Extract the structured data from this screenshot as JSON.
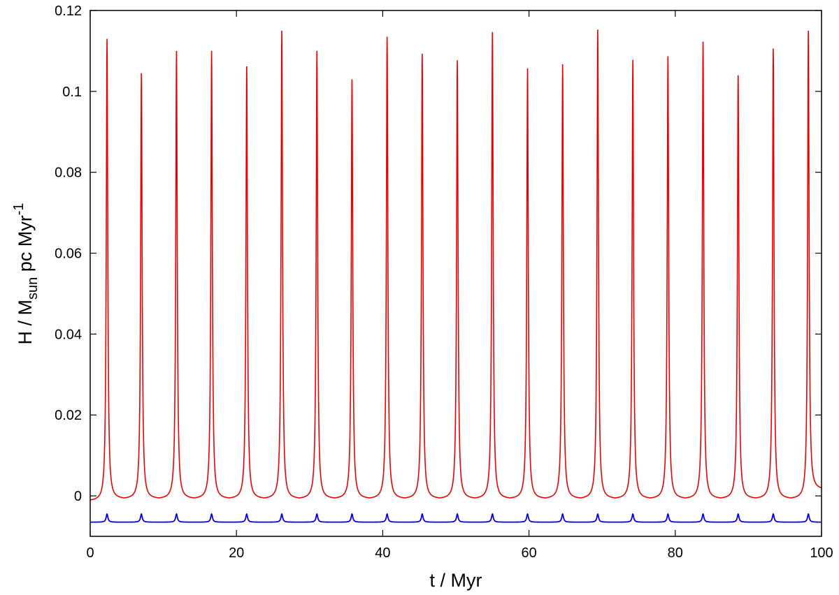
{
  "chart_data": {
    "type": "line",
    "title": "",
    "xlabel": "t / Myr",
    "ylabel": {
      "prefix": "H / M",
      "subscript": "sun",
      "middle": " pc Myr",
      "superscript": "-1"
    },
    "xlim": [
      0,
      100
    ],
    "ylim": [
      -0.01,
      0.12
    ],
    "xticks": [
      0,
      20,
      40,
      60,
      80,
      100
    ],
    "yticks": [
      0,
      0.02,
      0.04,
      0.06,
      0.08,
      0.1,
      0.12
    ],
    "ytick_labels": [
      "0",
      "0.02",
      "0.04",
      "0.06",
      "0.08",
      "0.1",
      "0.12"
    ],
    "grid": false,
    "series": [
      {
        "color": "#ee0000",
        "min_value": -0.0005,
        "peak_sharpness": 0.12,
        "peaks": [
          {
            "t": 2.3,
            "H": 0.113
          },
          {
            "t": 7.0,
            "H": 0.1045
          },
          {
            "t": 11.8,
            "H": 0.11
          },
          {
            "t": 16.6,
            "H": 0.11
          },
          {
            "t": 21.4,
            "H": 0.1062
          },
          {
            "t": 26.2,
            "H": 0.115
          },
          {
            "t": 31.0,
            "H": 0.11
          },
          {
            "t": 35.8,
            "H": 0.103
          },
          {
            "t": 40.6,
            "H": 0.1135
          },
          {
            "t": 45.4,
            "H": 0.1093
          },
          {
            "t": 50.2,
            "H": 0.1077
          },
          {
            "t": 55.0,
            "H": 0.1147
          },
          {
            "t": 59.8,
            "H": 0.1057
          },
          {
            "t": 64.6,
            "H": 0.1067
          },
          {
            "t": 69.4,
            "H": 0.1153
          },
          {
            "t": 74.2,
            "H": 0.1078
          },
          {
            "t": 79.0,
            "H": 0.1087
          },
          {
            "t": 83.8,
            "H": 0.1123
          },
          {
            "t": 88.6,
            "H": 0.104
          },
          {
            "t": 93.4,
            "H": 0.1106
          },
          {
            "t": 98.2,
            "H": 0.115
          }
        ],
        "start_value": -0.001,
        "end_value": 0.002
      },
      {
        "color": "#0000ee",
        "base_value": -0.0065,
        "spike_height": 0.002,
        "spike_width": 0.35,
        "spike_times": [
          2.3,
          7.0,
          11.8,
          16.6,
          21.4,
          26.2,
          31.0,
          35.8,
          40.6,
          45.4,
          50.2,
          55.0,
          59.8,
          64.6,
          69.4,
          74.2,
          79.0,
          83.8,
          88.6,
          93.4,
          98.2
        ]
      }
    ]
  }
}
